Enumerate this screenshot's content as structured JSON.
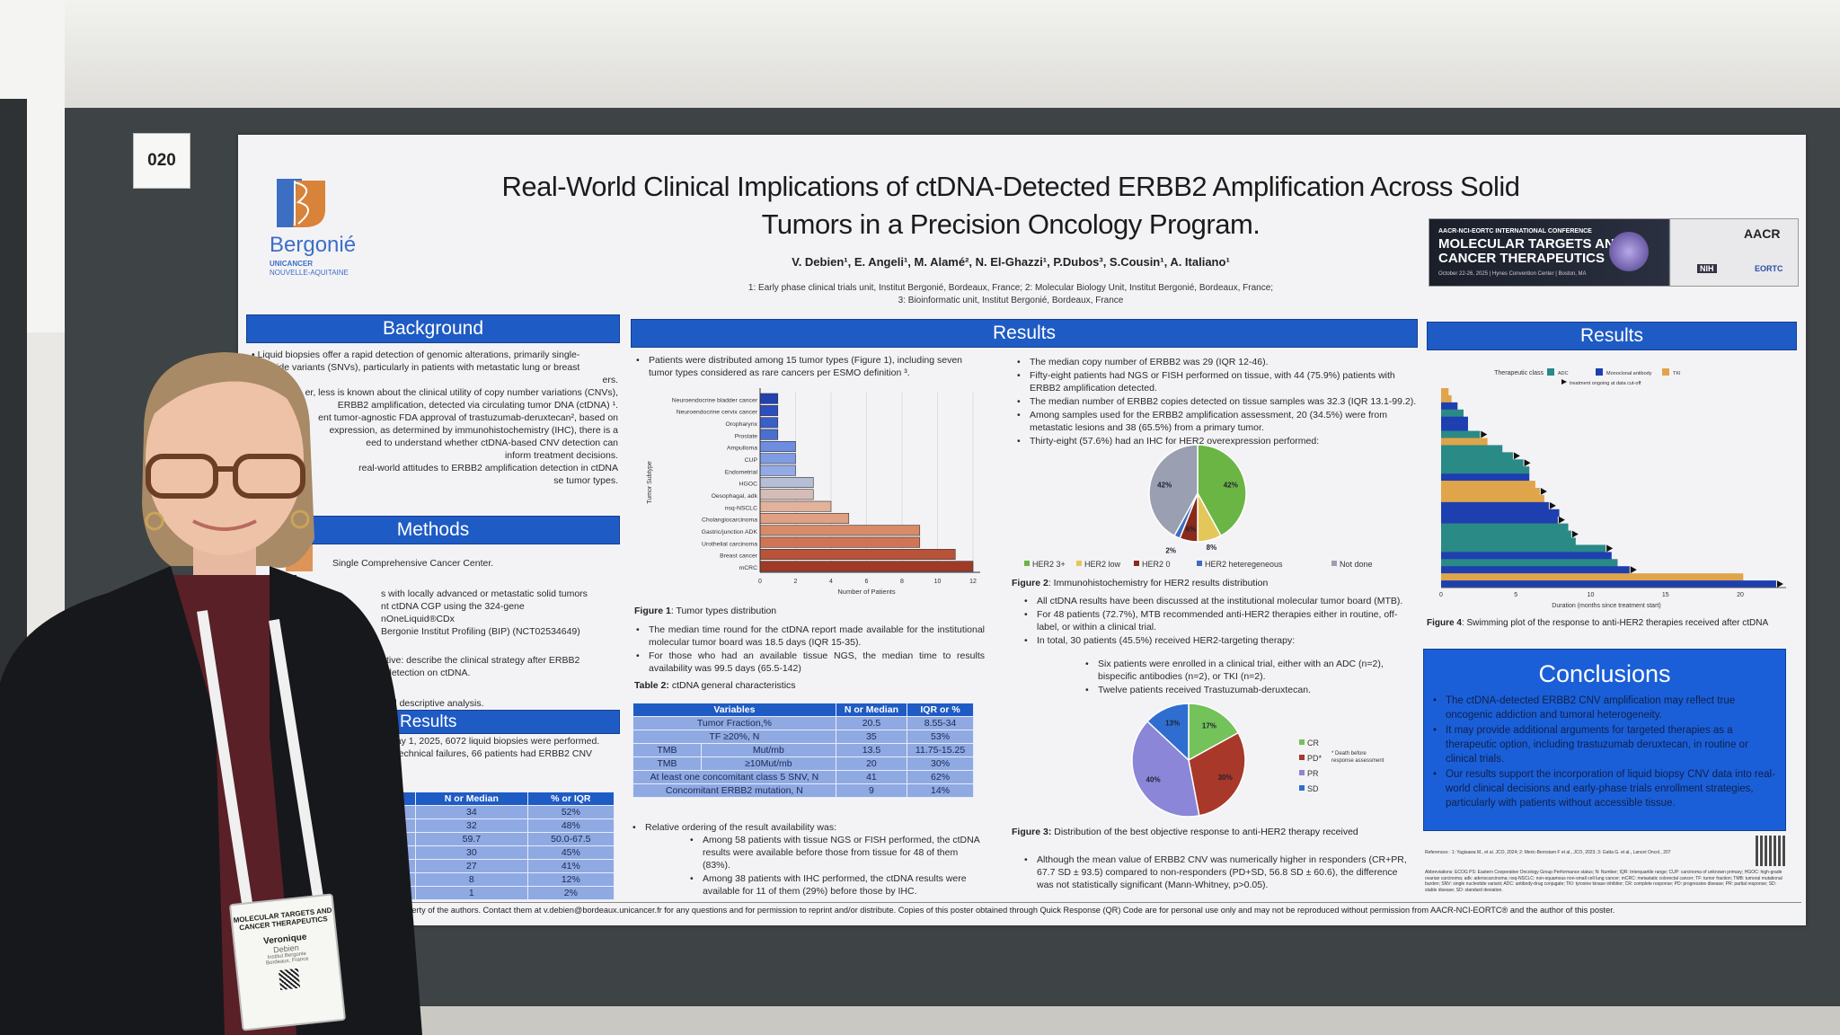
{
  "poster_number": "020",
  "logo": {
    "name": "Bergonié",
    "sub1": "UNICANCER",
    "sub2": "NOUVELLE-AQUITAINE"
  },
  "title_line1": "Real-World Clinical Implications of ctDNA-Detected ERBB2 Amplification Across Solid",
  "title_line2": "Tumors in a Precision Oncology Program.",
  "authors": "V. Debien¹, E. Angeli¹, M. Alamé², N. El-Ghazzi¹, P.Dubos³, S.Cousin¹, A. Italiano¹",
  "affiliations_1": "1: Early phase clinical trials unit, Institut Bergonié, Bordeaux, France; 2: Molecular Biology Unit, Institut Bergonié, Bordeaux, France;",
  "affiliations_2": "3: Bioinformatic unit, Institut Bergonié, Bordeaux, France",
  "conference_banner": {
    "kicker": "AACR-NCI-EORTC INTERNATIONAL CONFERENCE",
    "line1": "MOLECULAR TARGETS AND",
    "line2": "CANCER THERAPEUTICS",
    "details": "October 22-26, 2025 | Hynes Convention Center | Boston, MA",
    "logo_aacr": "AACR",
    "logo_nih": "NIH",
    "logo_eortc": "EORTC"
  },
  "background": {
    "header": "Background",
    "lines": [
      "• Liquid biopsies offer a rapid detection of genomic alterations, primarily single-",
      "ucleotide variants (SNVs), particularly in patients with metastatic lung or breast",
      "ers.",
      "er, less is known about the clinical utility of copy number variations (CNVs),",
      "ERBB2 amplification, detected via circulating tumor DNA (ctDNA) ¹.",
      "ent tumor-agnostic FDA approval of trastuzumab-deruxtecan², based on",
      "expression, as determined by immunohistochemistry (IHC), there is a",
      "eed to understand whether ctDNA-based CNV detection can",
      "inform treatment decisions.",
      "real-world attitudes to ERBB2 amplification detection in ctDNA",
      "se tumor types."
    ]
  },
  "methods": {
    "header": "Methods",
    "lines": [
      "Single Comprehensive Cancer Center.",
      "s with locally advanced or metastatic solid tumors",
      "nt ctDNA CGP using the 324-gene",
      "nOneLiquid®CDx",
      "Bergonie Institut Profiling (BIP) (NCT02534649)",
      "tive: describe the clinical strategy after ERBB2",
      "detection on ctDNA.",
      "nd descriptive analysis."
    ]
  },
  "results_left": {
    "header": "Results",
    "lines": [
      "May 1, 2025, 6072 liquid biopsies were performed.",
      "d technical failures, 66 patients had ERBB2 CNV"
    ],
    "table": {
      "headers": [
        "",
        "N or Median",
        "% or IQR"
      ],
      "rows": [
        [
          "le",
          "34",
          "52%"
        ],
        [
          "e",
          "32",
          "48%"
        ],
        [
          "rs",
          "59.7",
          "50.0-67.5"
        ],
        [
          "",
          "30",
          "45%"
        ],
        [
          "",
          "27",
          "41%"
        ],
        [
          "3",
          "8",
          "12%"
        ],
        [
          "K",
          "1",
          "2%"
        ]
      ]
    }
  },
  "results_mid": {
    "header": "Results",
    "intro": "Patients were distributed among 15 tumor types (Figure 1), including seven tumor types considered as rare cancers per ESMO definition ³.",
    "fig1_caption_label": "Figure 1",
    "fig1_caption": ": Tumor types distribution",
    "bullets": [
      "The median time round for the ctDNA report made available for the institutional molecular tumor board was 18.5 days (IQR 15-35).",
      "For those who had an available tissue NGS, the median time to results availability was 99.5 days (65.5-142)"
    ],
    "table2_caption_label": "Table 2:",
    "table2_caption": " ctDNA general characteristics",
    "table2": {
      "headers": [
        "Variables",
        "N or Median",
        "IQR or %"
      ],
      "rows": [
        [
          "Tumor Fraction,%",
          "",
          "20.5",
          "8.55-34"
        ],
        [
          "TF ≥20%, N",
          "",
          "35",
          "53%"
        ],
        [
          "TMB",
          "Mut/mb",
          "13.5",
          "11.75-15.25"
        ],
        [
          "TMB",
          "≥10Mut/mb",
          "20",
          "30%"
        ],
        [
          "At least one concomitant class 5 SNV, N",
          "",
          "41",
          "62%"
        ],
        [
          "Concomitant ERBB2 mutation, N",
          "",
          "9",
          "14%"
        ]
      ]
    },
    "ordering_intro": "Relative ordering of the result availability was:",
    "ordering": [
      "Among 58 patients with tissue NGS or FISH performed, the ctDNA results were available before those from tissue for 48 of them (83%).",
      "Among 38 patients with IHC performed, the ctDNA results were available for 11 of them (29%) before those by IHC."
    ]
  },
  "results_right": {
    "bullets_top": [
      "The median copy number of ERBB2 was 29 (IQR 12-46).",
      "Fifty-eight patients had NGS or FISH performed on tissue, with 44 (75.9%) patients with ERBB2 amplification detected.",
      "The median number of ERBB2 copies detected on tissue samples was 32.3 (IQR 13.1-99.2).",
      "Among samples used for the ERBB2 amplification assessment, 20 (34.5%) were from metastatic lesions and 38 (65.5%) from a primary tumor.",
      "Thirty-eight (57.6%) had an IHC for HER2 overexpression performed:"
    ],
    "fig2_caption_label": "Figure 2",
    "fig2_caption": ": Immunohistochemistry for HER2 results distribution",
    "bullets_mid": [
      "All ctDNA results have been discussed at the institutional molecular tumor board (MTB).",
      "For 48 patients (72.7%), MTB recommended anti-HER2 therapies either in routine, off-label, or within a clinical trial.",
      "In total, 30 patients (45.5%) received HER2-targeting therapy:"
    ],
    "sub_bullets": [
      "Six patients were enrolled in a clinical trial, either with an ADC (n=2), bispecific antibodies (n=2), or TKI (n=2).",
      "Twelve patients received Trastuzumab-deruxtecan."
    ],
    "pd_note": "* Death before response assessment",
    "fig3_caption_label": "Figure 3:",
    "fig3_caption": " Distribution of the best objective response to anti-HER2 therapy received",
    "bullet_bottom": "Although the mean value of ERBB2 CNV was numerically higher in responders (CR+PR, 67.7 SD ± 93.5) compared to non-responders (PD+SD, 56.8 SD ± 60.6), the difference was not statistically significant (Mann-Whitney, p>0.05)."
  },
  "column3": {
    "header": "Results",
    "fig4_caption_label": "Figure 4",
    "fig4_caption": ": Swimming plot of the response to anti-HER2 therapies received after ctDNA",
    "conclusions_header": "Conclusions",
    "conclusions": [
      "The ctDNA-detected ERBB2 CNV amplification may reflect true oncogenic addiction and tumoral heterogeneity.",
      "It may provide additional arguments for targeted therapies as a therapeutic option, including trastuzumab deruxtecan, in routine or clinical trials.",
      "Our results support the incorporation of liquid biopsy CNV data into real-world clinical decisions and early-phase trials enrollment strategies, particularly with patients without accessible tissue."
    ],
    "references": "References : 1: Yagisawa M., et al. JCO, 2024; 2: Meric-Bernstam F et al., JCO, 2023; 3: Gatta G. et al., Lancet Oncol., 207",
    "abbreviations": "Abbreviations: ECOG PS: Eastern Cooperative Oncology Group Performance status; N: Number; IQR: Interquartile range; CUP: carcinoma of unknown primary; HGOC: high-grade ovarian carcinoma; adk: adenocarcinoma; nsq-NSCLC: non-squamous non-small cell lung cancer; mCRC: metastatic colorectal cancer; TF: tumor fraction; TMB: tumoral mutational burden; SNV: single nucleotide variant; ADC: antibody-drug conjugate; TKI: tyrosine kinase inhibitor; CR: complete response; PD: progressive disease; PR: partial response; SD: stable disease; SD: standard deviation."
  },
  "footer": "property of the authors. Contact them at v.debien@bordeaux.unicancer.fr for any questions and for permission to reprint and/or distribute. Copies of this poster obtained through Quick Response (QR) Code are for personal use only and may not be reproduced without permission from AACR-NCI-EORTC® and the author of this poster.",
  "badge": {
    "conference": "MOLECULAR TARGETS AND CANCER THERAPEUTICS",
    "first_name": "Veronique",
    "last_name": "Debien",
    "org": "Institut Bergonie",
    "city": "Bordeaux, France"
  },
  "colors": {
    "section_blue": "#1f5bc4",
    "logo_orange": "#d9823a",
    "adc": "#2a8a86",
    "mab": "#1e3fb0",
    "tki": "#e0a54a"
  },
  "chart_data": [
    {
      "type": "bar",
      "orientation": "horizontal",
      "categories": [
        "Neuroendocrine bladder cancer",
        "Neuroendocrine cervix cancer",
        "Oropharynx",
        "Prostate",
        "Ampulloma",
        "CUP",
        "Endometrial",
        "HGOC",
        "Oesophagal, adk",
        "nsq-NSCLC",
        "Cholangiocarcinoma",
        "Gastric/junction ADK",
        "Urothelial carcinoma",
        "Breast cancer",
        "mCRC"
      ],
      "values": [
        1,
        1,
        1,
        1,
        2,
        2,
        2,
        3,
        3,
        4,
        5,
        9,
        9,
        11,
        12
      ],
      "xlabel": "Number of Patients",
      "ylabel": "Tumor Subtype",
      "xlim": [
        0,
        12
      ],
      "xticks": [
        0,
        2,
        4,
        6,
        8,
        10,
        12
      ],
      "grid": true
    },
    {
      "type": "pie",
      "labels": [
        "HER2 3+",
        "HER2 low",
        "HER2 0",
        "HER2 heteregeneous",
        "Not done"
      ],
      "values": [
        42,
        8,
        6,
        2,
        42
      ],
      "value_labels": [
        "42%",
        "8%",
        "6%",
        "2%",
        "42%"
      ],
      "colors": [
        "#6bb545",
        "#e3c75a",
        "#8a2a1c",
        "#3d6cc0",
        "#9a9fb2"
      ],
      "legend": "bottom"
    },
    {
      "type": "pie",
      "labels": [
        "CR",
        "PD*",
        "PR",
        "SD"
      ],
      "values": [
        17,
        30,
        40,
        13
      ],
      "value_labels": [
        "17%",
        "30%",
        "40%",
        "13%"
      ],
      "colors": [
        "#74c25a",
        "#a8382a",
        "#8b86d8",
        "#2f6ed0"
      ],
      "legend": "right"
    },
    {
      "type": "bar",
      "subtype": "swimmer",
      "xlabel": "Duration (months since treatment start)",
      "xlim": [
        0,
        23
      ],
      "xticks": [
        0,
        5,
        10,
        15,
        20
      ],
      "legend_title": "Therapeutic class",
      "legend": [
        "ADC",
        "Monoclonal antibody",
        "TKI"
      ],
      "ongoing_label": "treatment ongoing at data cut-off",
      "patients": [
        {
          "months": 0.5,
          "class": "TKI",
          "ongoing": false
        },
        {
          "months": 0.7,
          "class": "TKI",
          "ongoing": false
        },
        {
          "months": 1.1,
          "class": "Monoclonal antibody",
          "ongoing": false
        },
        {
          "months": 1.5,
          "class": "ADC",
          "ongoing": false
        },
        {
          "months": 1.8,
          "class": "Monoclonal antibody",
          "ongoing": false
        },
        {
          "months": 1.8,
          "class": "Monoclonal antibody",
          "ongoing": false
        },
        {
          "months": 2.6,
          "class": "ADC",
          "ongoing": true
        },
        {
          "months": 3.1,
          "class": "TKI",
          "ongoing": false
        },
        {
          "months": 4.1,
          "class": "ADC",
          "ongoing": false
        },
        {
          "months": 4.8,
          "class": "ADC",
          "ongoing": true
        },
        {
          "months": 5.5,
          "class": "ADC",
          "ongoing": true
        },
        {
          "months": 5.9,
          "class": "ADC",
          "ongoing": false
        },
        {
          "months": 5.9,
          "class": "Monoclonal antibody",
          "ongoing": false
        },
        {
          "months": 6.3,
          "class": "TKI",
          "ongoing": false
        },
        {
          "months": 6.6,
          "class": "TKI",
          "ongoing": true
        },
        {
          "months": 6.9,
          "class": "TKI",
          "ongoing": false
        },
        {
          "months": 7.2,
          "class": "Monoclonal antibody",
          "ongoing": true
        },
        {
          "months": 7.9,
          "class": "Monoclonal antibody",
          "ongoing": false
        },
        {
          "months": 7.8,
          "class": "Monoclonal antibody",
          "ongoing": true
        },
        {
          "months": 8.5,
          "class": "ADC",
          "ongoing": false
        },
        {
          "months": 8.7,
          "class": "ADC",
          "ongoing": true
        },
        {
          "months": 9.0,
          "class": "ADC",
          "ongoing": false
        },
        {
          "months": 11.0,
          "class": "ADC",
          "ongoing": true
        },
        {
          "months": 11.4,
          "class": "Monoclonal antibody",
          "ongoing": false
        },
        {
          "months": 11.8,
          "class": "ADC",
          "ongoing": false
        },
        {
          "months": 12.6,
          "class": "Monoclonal antibody",
          "ongoing": true
        },
        {
          "months": 20.2,
          "class": "TKI",
          "ongoing": false
        },
        {
          "months": 22.4,
          "class": "Monoclonal antibody",
          "ongoing": true
        }
      ]
    }
  ]
}
